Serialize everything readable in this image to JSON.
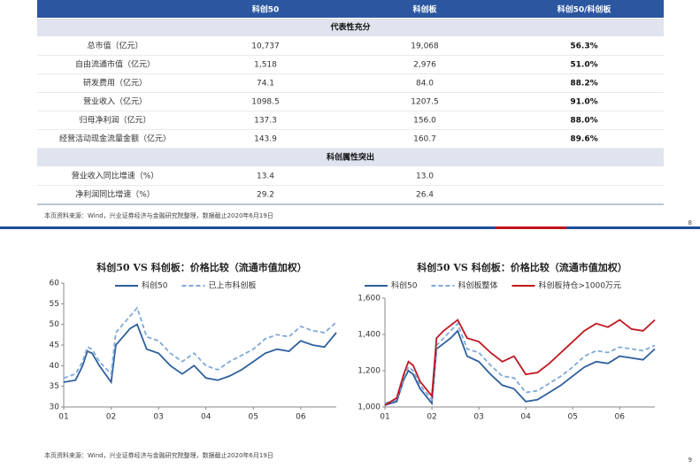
{
  "table": {
    "columns": [
      "科创50",
      "科创板",
      "科创50/科创板"
    ],
    "sections": [
      {
        "title": "代表性充分",
        "rows": [
          [
            "总市值（亿元）",
            "10,737",
            "19,068",
            "56.3%"
          ],
          [
            "自由流通市值（亿元）",
            "1,518",
            "2,976",
            "51.0%"
          ],
          [
            "研发费用（亿元）",
            "74.1",
            "84.0",
            "88.2%"
          ],
          [
            "营业收入（亿元）",
            "1098.5",
            "1207.5",
            "91.0%"
          ],
          [
            "归母净利润（亿元）",
            "137.3",
            "156.0",
            "88.0%"
          ],
          [
            "经营活动现金流量金额（亿元）",
            "143.9",
            "160.7",
            "89.6%"
          ]
        ]
      },
      {
        "title": "科创属性突出",
        "rows": [
          [
            "营业收入同比增速（%）",
            "13.4",
            "13.0"
          ],
          [
            "净利润同比增速（%）",
            "29.2",
            "26.4"
          ]
        ]
      }
    ]
  },
  "slides": [
    {
      "source": "本页资料来源：Wind，兴业证券经济与金融研究院整理，数据截止2020年6月19日",
      "page_number": 8
    },
    {
      "source": "本页资料来源：Wind，兴业证券经济与金融研究院整理，数据截止2020年6月19日",
      "page_number": 9
    }
  ],
  "chart_data": [
    {
      "type": "line",
      "title": "科创50 VS 科创板：价格比较（流通市值加权）",
      "x": [
        1,
        1.25,
        1.4,
        1.5,
        1.6,
        1.75,
        2,
        2.1,
        2.25,
        2.4,
        2.55,
        2.75,
        3,
        3.25,
        3.5,
        3.75,
        4,
        4.25,
        4.5,
        4.75,
        5,
        5.25,
        5.5,
        5.75,
        6,
        6.25,
        6.5,
        6.75
      ],
      "xlim": [
        1,
        6.75
      ],
      "xticks": [
        {
          "value": 1,
          "label": "01"
        },
        {
          "value": 2,
          "label": "02"
        },
        {
          "value": 3,
          "label": "03"
        },
        {
          "value": 4,
          "label": "04"
        },
        {
          "value": 5,
          "label": "05"
        },
        {
          "value": 6,
          "label": "06"
        }
      ],
      "ylim": [
        30,
        60
      ],
      "yticks": [
        30,
        35,
        40,
        45,
        50,
        55,
        60
      ],
      "series": [
        {
          "name": "科创50",
          "color": "#2e5f9e",
          "dash": false,
          "values": [
            36,
            36.5,
            40,
            43.5,
            43,
            40,
            36,
            45,
            47,
            49,
            50,
            44,
            43,
            40,
            38,
            40,
            37,
            36.5,
            37.5,
            39,
            41,
            43,
            44,
            43.5,
            46,
            45,
            44.5,
            48
          ]
        },
        {
          "name": "已上市科创板",
          "color": "#7fa9d8",
          "dash": true,
          "values": [
            37,
            38,
            41,
            44.5,
            44,
            41,
            38,
            48,
            50,
            52,
            54,
            47,
            46,
            43,
            41,
            43,
            40,
            39,
            41,
            42.5,
            44,
            46.5,
            47.5,
            47,
            49.5,
            48.5,
            48,
            50.5
          ]
        }
      ]
    },
    {
      "type": "line",
      "title": "科创50 VS 科创板：价格比较（流通市值加权）",
      "x": [
        1,
        1.25,
        1.4,
        1.5,
        1.6,
        1.75,
        2,
        2.1,
        2.25,
        2.4,
        2.55,
        2.75,
        3,
        3.25,
        3.5,
        3.75,
        4,
        4.25,
        4.5,
        4.75,
        5,
        5.25,
        5.5,
        5.75,
        6,
        6.25,
        6.5,
        6.75
      ],
      "xlim": [
        1,
        6.75
      ],
      "xticks": [
        {
          "value": 1,
          "label": "01"
        },
        {
          "value": 2,
          "label": "02"
        },
        {
          "value": 3,
          "label": "03"
        },
        {
          "value": 4,
          "label": "04"
        },
        {
          "value": 5,
          "label": "05"
        },
        {
          "value": 6,
          "label": "06"
        }
      ],
      "ylim": [
        1000,
        1600
      ],
      "yticks": [
        {
          "value": 1000,
          "label": "1,000"
        },
        {
          "value": 1200,
          "label": "1,200"
        },
        {
          "value": 1400,
          "label": "1,400"
        },
        {
          "value": 1600,
          "label": "1,600"
        }
      ],
      "series": [
        {
          "name": "科创50",
          "color": "#2e5f9e",
          "dash": false,
          "values": [
            1010,
            1030,
            1150,
            1200,
            1180,
            1100,
            1020,
            1320,
            1350,
            1380,
            1420,
            1280,
            1250,
            1180,
            1120,
            1100,
            1030,
            1040,
            1080,
            1120,
            1170,
            1220,
            1250,
            1240,
            1280,
            1270,
            1260,
            1320
          ]
        },
        {
          "name": "科创板整体",
          "color": "#7fa9d8",
          "dash": true,
          "values": [
            1020,
            1040,
            1160,
            1220,
            1200,
            1120,
            1040,
            1340,
            1380,
            1420,
            1460,
            1320,
            1300,
            1230,
            1170,
            1160,
            1080,
            1090,
            1130,
            1170,
            1220,
            1280,
            1310,
            1300,
            1330,
            1320,
            1310,
            1340
          ]
        },
        {
          "name": "科创板持仓>1000万元",
          "color": "#c0161e",
          "dash": false,
          "values": [
            1010,
            1050,
            1180,
            1250,
            1230,
            1140,
            1060,
            1380,
            1420,
            1450,
            1480,
            1380,
            1360,
            1300,
            1250,
            1280,
            1180,
            1190,
            1240,
            1300,
            1360,
            1420,
            1460,
            1440,
            1480,
            1430,
            1420,
            1480
          ]
        }
      ]
    }
  ]
}
